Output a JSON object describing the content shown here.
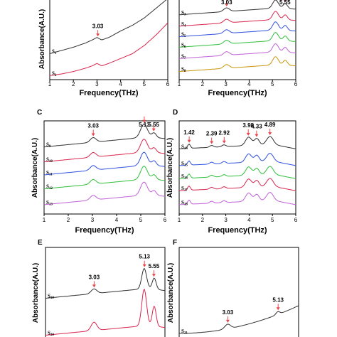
{
  "chart_data": [
    {
      "panel": "A",
      "show_panel_label": false,
      "type": "line",
      "xlabel": "Frequency(THz)",
      "ylabel": "Absorbance(A.U.)",
      "xlim": [
        1,
        6
      ],
      "xticks": [
        "1",
        "2",
        "3",
        "4",
        "5",
        "6"
      ],
      "annotations": [
        {
          "x": 3.03,
          "label": "3.03"
        }
      ],
      "series": [
        {
          "name": "S1",
          "label_main": "S",
          "label_sub": "1",
          "color": "#303030",
          "x": [
            1,
            1.5,
            2,
            2.5,
            2.8,
            3.0,
            3.2,
            3.5,
            4.0,
            4.5,
            5.0,
            5.5,
            6.0
          ],
          "y": [
            0.32,
            0.36,
            0.4,
            0.45,
            0.49,
            0.52,
            0.49,
            0.52,
            0.6,
            0.67,
            0.76,
            0.88,
            1.0
          ]
        },
        {
          "name": "S2",
          "label_main": "S",
          "label_sub": "2",
          "color": "#d9254f",
          "x": [
            1,
            1.5,
            2,
            2.5,
            2.8,
            3.0,
            3.2,
            3.5,
            4.0,
            4.5,
            5.0,
            5.5,
            6.0
          ],
          "y": [
            0.05,
            0.07,
            0.1,
            0.14,
            0.17,
            0.2,
            0.17,
            0.2,
            0.26,
            0.32,
            0.42,
            0.55,
            0.7
          ]
        }
      ]
    },
    {
      "panel": "B",
      "show_panel_label": false,
      "type": "line",
      "xlabel": "Frequency(THz)",
      "ylabel": "",
      "xlim": [
        1,
        6
      ],
      "xticks": [
        "1",
        "2",
        "3",
        "4",
        "5",
        "6"
      ],
      "annotations": [
        {
          "x": 3.03,
          "label": "3.03"
        },
        {
          "x": 5.13,
          "label": ""
        },
        {
          "x": 5.55,
          "label": "5.55"
        }
      ],
      "series": [
        {
          "name": "S3",
          "label_main": "S",
          "label_sub": "3",
          "color": "#303030",
          "offset": 0.8
        },
        {
          "name": "S4",
          "label_main": "S",
          "label_sub": "4",
          "color": "#d9254f",
          "offset": 0.66
        },
        {
          "name": "S5",
          "label_main": "S",
          "label_sub": "5",
          "color": "#3050e0",
          "offset": 0.53
        },
        {
          "name": "S6",
          "label_main": "S",
          "label_sub": "6",
          "color": "#2fbf3a",
          "offset": 0.4
        },
        {
          "name": "S7",
          "label_main": "S",
          "label_sub": "7",
          "color": "#c060d8",
          "offset": 0.26
        },
        {
          "name": "S8",
          "label_main": "S",
          "label_sub": "8",
          "color": "#c8960a",
          "offset": 0.1
        }
      ]
    },
    {
      "panel": "C",
      "show_panel_label": true,
      "type": "line",
      "xlabel": "Frequency(THz)",
      "ylabel": "Absorbance(A.U.)",
      "xlim": [
        1,
        6
      ],
      "xticks": [
        "1",
        "2",
        "3",
        "4",
        "5",
        "6"
      ],
      "annotations": [
        {
          "x": 3.03,
          "label": "3.03"
        },
        {
          "x": 5.13,
          "label": "5.13"
        },
        {
          "x": 5.55,
          "label": "5.55"
        }
      ],
      "series": [
        {
          "name": "S9",
          "label_main": "S",
          "label_sub": "9",
          "color": "#303030",
          "offset": 0.72
        },
        {
          "name": "S10",
          "label_main": "S",
          "label_sub": "10",
          "color": "#d9254f",
          "offset": 0.56
        },
        {
          "name": "S11",
          "label_main": "S",
          "label_sub": "11",
          "color": "#3050e0",
          "offset": 0.42
        },
        {
          "name": "S12",
          "label_main": "S",
          "label_sub": "12",
          "color": "#2fbf3a",
          "offset": 0.27
        },
        {
          "name": "S13",
          "label_main": "S",
          "label_sub": "13",
          "color": "#c060d8",
          "offset": 0.1
        }
      ]
    },
    {
      "panel": "D",
      "show_panel_label": true,
      "type": "line",
      "xlabel": "Frequency(THz)",
      "ylabel": "Absorbance(A.U.)",
      "xlim": [
        1,
        6
      ],
      "xticks": [
        "1",
        "2",
        "3",
        "4",
        "5",
        "6"
      ],
      "annotations": [
        {
          "x": 1.42,
          "label": "1.42"
        },
        {
          "x": 2.39,
          "label": "2.39"
        },
        {
          "x": 2.92,
          "label": "2.92"
        },
        {
          "x": 3.98,
          "label": "3.98"
        },
        {
          "x": 4.33,
          "label": "4.33"
        },
        {
          "x": 4.89,
          "label": "4.89"
        }
      ],
      "series": [
        {
          "name": "S14",
          "label_main": "S",
          "label_sub": "14",
          "color": "#303030",
          "offset": 0.7
        },
        {
          "name": "S15",
          "label_main": "S",
          "label_sub": "15",
          "color": "#3050e0",
          "offset": 0.52
        },
        {
          "name": "S16",
          "label_main": "S",
          "label_sub": "16",
          "color": "#2fbf3a",
          "offset": 0.38
        },
        {
          "name": "S17",
          "label_main": "S",
          "label_sub": "17",
          "color": "#d9254f",
          "offset": 0.25
        },
        {
          "name": "S18",
          "label_main": "S",
          "label_sub": "18",
          "color": "#c060d8",
          "offset": 0.1
        }
      ]
    },
    {
      "panel": "E",
      "show_panel_label": true,
      "type": "line",
      "xlabel": "",
      "ylabel": "Absorbance(A.U.)",
      "xlim": [
        1,
        6
      ],
      "xticks": [],
      "annotations": [
        {
          "x": 3.03,
          "label": "3.03"
        },
        {
          "x": 5.13,
          "label": "5.13"
        },
        {
          "x": 5.55,
          "label": "5.55"
        }
      ],
      "series": [
        {
          "name": "S19",
          "label_main": "S",
          "label_sub": "19",
          "color": "#303030",
          "offset": 0.45
        },
        {
          "name": "S20",
          "label_main": "S",
          "label_sub": "20",
          "color": "#d9254f",
          "offset": 0.05
        }
      ]
    },
    {
      "panel": "F",
      "show_panel_label": true,
      "type": "line",
      "xlabel": "",
      "ylabel": "Absorbance(A.U.)",
      "xlim": [
        1,
        6
      ],
      "xticks": [],
      "annotations": [
        {
          "x": 3.03,
          "label": "3.03"
        },
        {
          "x": 5.13,
          "label": "5.13"
        }
      ],
      "series": [
        {
          "name": "S21",
          "label_main": "S",
          "label_sub": "21",
          "color": "#303030",
          "offset": 0.05
        }
      ]
    }
  ]
}
